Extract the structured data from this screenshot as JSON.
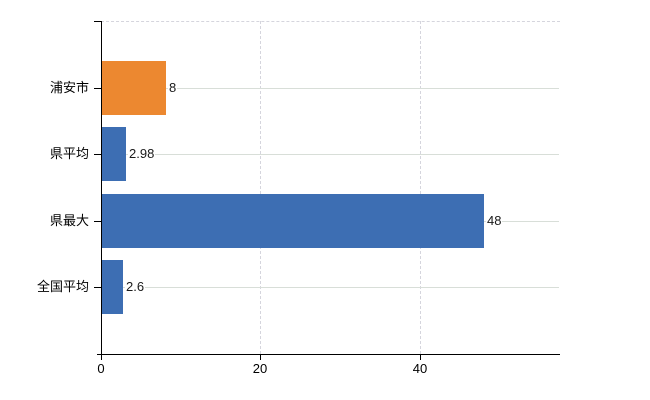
{
  "chart_data": {
    "type": "bar",
    "orientation": "horizontal",
    "title": "",
    "subtitle": "",
    "xlabel": "",
    "ylabel": "",
    "categories": [
      "浦安市",
      "県平均",
      "県最大",
      "全国平均"
    ],
    "values": [
      8,
      2.98,
      48,
      2.6
    ],
    "value_labels": [
      "8",
      "2.98",
      "48",
      "2.6"
    ],
    "bar_colors": [
      "#EC8830",
      "#3D6EB3",
      "#3D6EB3",
      "#3D6EB3"
    ],
    "x_ticks": [
      0,
      20,
      40
    ],
    "x_tick_labels": [
      "0",
      "20",
      "40"
    ],
    "xlim": [
      0,
      57.5
    ],
    "legend": "none",
    "grid": {
      "vertical_gridlines": "dashed",
      "horizontal_gridlines_at_category_centers": "solid",
      "plot_top_border": "dashed"
    }
  },
  "colors": {
    "background": "#ffffff",
    "bar_blue": "#3D6EB3",
    "bar_orange": "#EC8830",
    "axis": "#000000",
    "gridline_solid": "#d8ded8",
    "gridline_dashed": "#d5d5dd",
    "text": "#000000"
  }
}
